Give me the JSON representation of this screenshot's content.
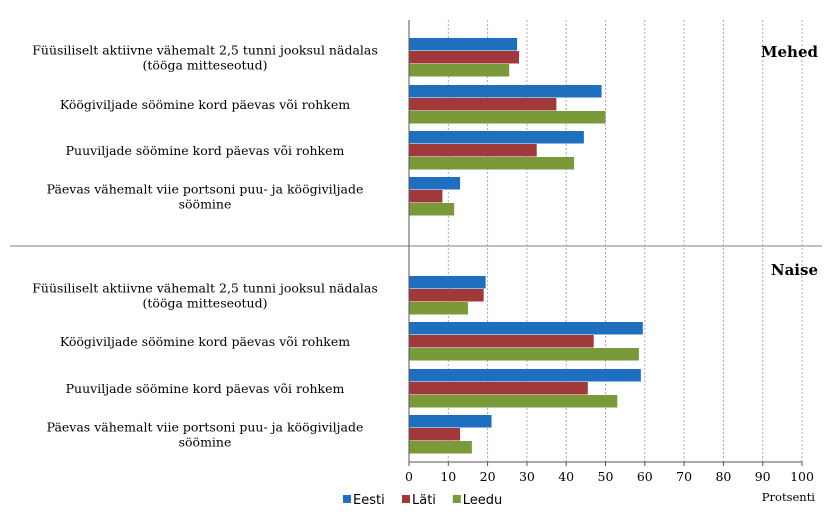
{
  "chart_data": {
    "type": "bar",
    "orientation": "horizontal",
    "xlabel": "Protsenti",
    "xlim": [
      0,
      100
    ],
    "xticks": [
      0,
      10,
      20,
      30,
      40,
      50,
      60,
      70,
      80,
      90,
      100
    ],
    "grid": "vertical dotted",
    "legend_position": "bottom-left",
    "series": [
      {
        "name": "Eesti",
        "color": "#1f6fbf"
      },
      {
        "name": "Läti",
        "color": "#a03a3a"
      },
      {
        "name": "Leedu",
        "color": "#7a9a3a"
      }
    ],
    "panels": [
      {
        "title": "Mehed",
        "categories": [
          [
            "Füüsiliselt aktiivne vähemalt 2,5 tunni jooksul nädalas",
            "(tööga mitteseotud)"
          ],
          [
            "Köögiviljade söömine kord päevas või rohkem"
          ],
          [
            "Puuviljade söömine kord päevas või rohkem"
          ],
          [
            "Päevas vähemalt viie portsoni puu- ja köögiviljade",
            "söömine"
          ]
        ],
        "values": {
          "Eesti": [
            27.5,
            49,
            44.5,
            13
          ],
          "Läti": [
            28,
            37.5,
            32.5,
            8.5
          ],
          "Leedu": [
            25.5,
            50,
            42,
            11.5
          ]
        }
      },
      {
        "title": "Naise",
        "categories": [
          [
            "Füüsiliselt aktiivne vähemalt 2,5 tunni jooksul nädalas",
            "(tööga mitteseotud)"
          ],
          [
            "Köögiviljade söömine kord päevas või rohkem"
          ],
          [
            "Puuviljade söömine kord päevas või rohkem"
          ],
          [
            "Päevas vähemalt viie portsoni puu- ja köögiviljade",
            "söömine"
          ]
        ],
        "values": {
          "Eesti": [
            19.5,
            59.5,
            59,
            21
          ],
          "Läti": [
            19,
            47,
            45.5,
            13
          ],
          "Leedu": [
            15,
            58.5,
            53,
            16
          ]
        }
      }
    ]
  }
}
